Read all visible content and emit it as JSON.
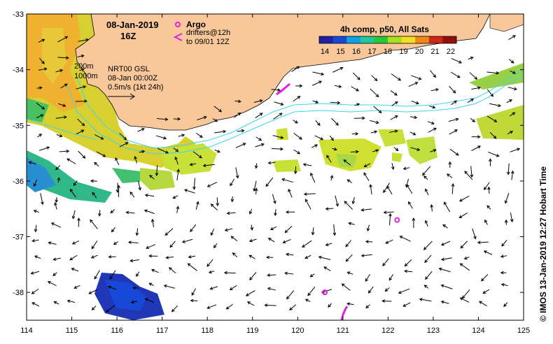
{
  "map": {
    "date_line1": "08-Jan-2019",
    "date_line2": "16Z",
    "argo_label": "Argo",
    "drifters_line1": "drifters@12h",
    "drifters_line2": "to 09/01 12Z",
    "contour_200": "200m",
    "contour_1000": "1000m",
    "nrt_line1": "NRT00 GSL",
    "nrt_line2": "08-Jan 00:00Z",
    "nrt_line3": "0.5m/s (1kt 24h)",
    "credit": "© IMOS 13-Jan-2019 12:27 Hobart Time",
    "colors": {
      "land": "#f8c89a",
      "contour": "#38d8f0",
      "argo": "#e020e0",
      "frame": "#000000"
    }
  },
  "colorbar": {
    "title": "4h comp, p50, All Sats",
    "ticks": [
      "14",
      "15",
      "16",
      "17",
      "18",
      "19",
      "20",
      "21",
      "22"
    ],
    "colors": [
      "#2020a8",
      "#1848d8",
      "#10a0e8",
      "#20c8a0",
      "#28c838",
      "#a8e020",
      "#f0e020",
      "#f08818",
      "#d02818",
      "#901010"
    ]
  },
  "axes": {
    "lon_ticks": [
      "114",
      "115",
      "116",
      "117",
      "118",
      "119",
      "120",
      "121",
      "122",
      "123",
      "124",
      "125"
    ],
    "lat_ticks": [
      "-33",
      "-34",
      "-35",
      "-36",
      "-37",
      "-38"
    ],
    "lon_range": [
      114,
      125
    ],
    "lat_range": [
      -33,
      -38.5
    ]
  },
  "argo_floats": [
    {
      "lon": 122.2,
      "lat": -36.7
    },
    {
      "lon": 120.6,
      "lat": -38.0
    }
  ]
}
